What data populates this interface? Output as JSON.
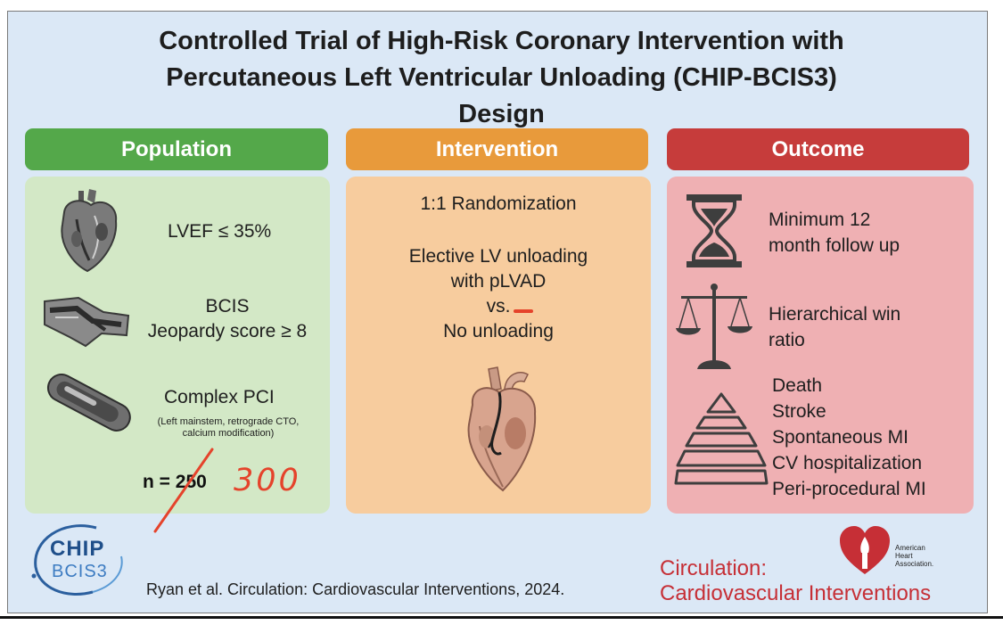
{
  "title": "Controlled Trial of High-Risk Coronary Intervention with\nPercutaneous Left Ventricular Unloading (CHIP-BCIS3)\nDesign",
  "colors": {
    "population_header": "#54a84a",
    "population_panel": "#d3e8c6",
    "intervention_header": "#e89a3b",
    "intervention_panel": "#f7cc9e",
    "outcome_header": "#c63c3b",
    "outcome_panel": "#efb0b3",
    "annotation": "#e5432b",
    "journal": "#c62f36"
  },
  "population": {
    "header": "Population",
    "lvef": "LVEF ≤ 35%",
    "bcis_line1": "BCIS",
    "bcis_line2": "Jeopardy score ≥ 8",
    "complex_pci": "Complex PCI",
    "complex_note_line1": "(Left mainstem, retrograde CTO,",
    "complex_note_line2": "calcium modification)",
    "n_label": "n = 250",
    "handwritten_n": "300"
  },
  "intervention": {
    "header": "Intervention",
    "randomization": "1:1 Randomization",
    "line1": "Elective LV unloading",
    "line2": "with pLVAD",
    "line3": "vs.",
    "line4": "No unloading"
  },
  "outcome": {
    "header": "Outcome",
    "followup_line1": "Minimum 12",
    "followup_line2": "month follow up",
    "win_line1": "Hierarchical win",
    "win_line2": "ratio",
    "hierarchy": [
      "Death",
      "Stroke",
      "Spontaneous MI",
      "CV hospitalization",
      "Peri-procedural MI"
    ]
  },
  "footer": {
    "logo_line1": "CHIP",
    "logo_line2": "BCIS3",
    "citation": "Ryan et al. Circulation: Cardiovascular Interventions, 2024.",
    "journal_line1": "Circulation:",
    "journal_line2": "Cardiovascular Interventions",
    "aha_line1": "American",
    "aha_line2": "Heart",
    "aha_line3": "Association."
  }
}
